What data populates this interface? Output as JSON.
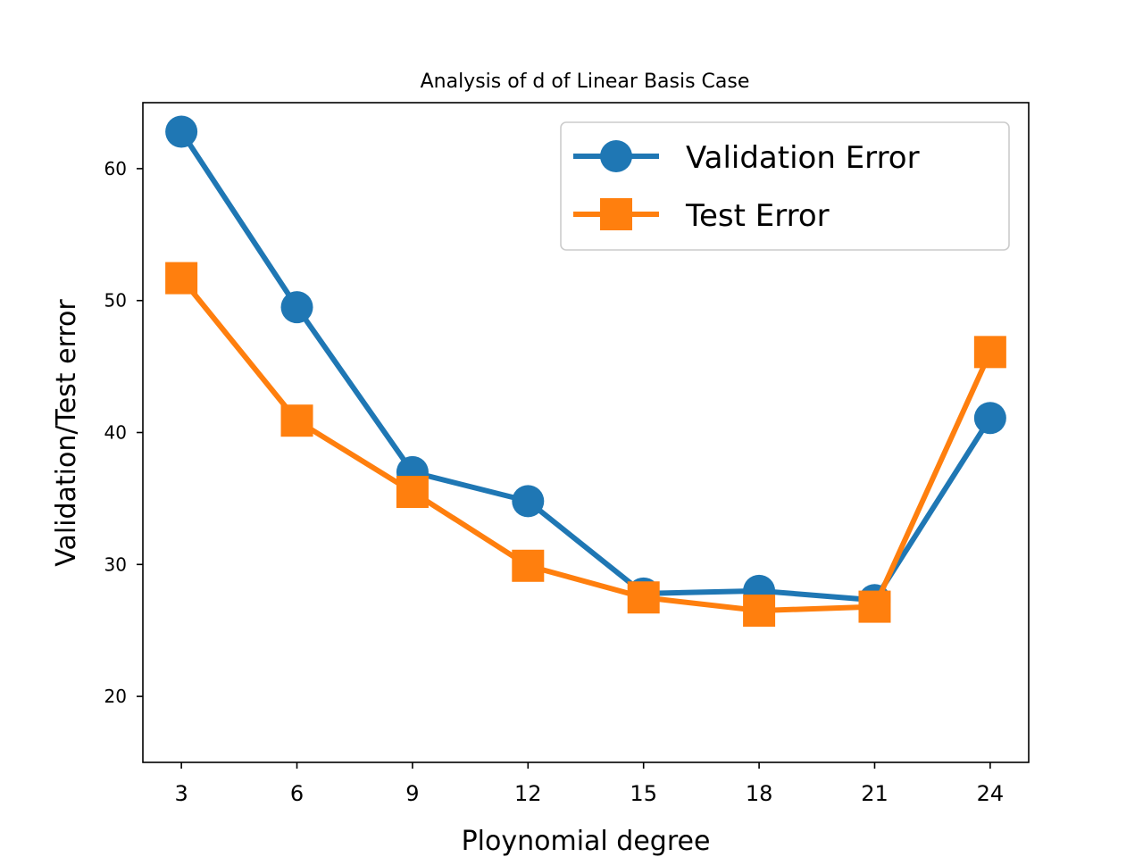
{
  "chart_data": {
    "type": "line",
    "title": "Analysis of d of Linear Basis Case",
    "xlabel": "Ploynomial degree",
    "ylabel": "Validation/Test error",
    "x": [
      3,
      6,
      9,
      12,
      15,
      18,
      21,
      24
    ],
    "xticks": [
      3,
      6,
      9,
      12,
      15,
      18,
      21,
      24
    ],
    "yticks": [
      20,
      30,
      40,
      50,
      60
    ],
    "xlim": [
      2,
      25
    ],
    "ylim": [
      15,
      65
    ],
    "grid": false,
    "legend_position": "upper-right",
    "series": [
      {
        "name": "Validation Error",
        "color": "#1f77b4",
        "marker": "circle",
        "values": [
          62.8,
          49.5,
          37.0,
          34.8,
          27.8,
          28.0,
          27.3,
          41.1
        ]
      },
      {
        "name": "Test Error",
        "color": "#ff7f0e",
        "marker": "square",
        "values": [
          51.7,
          40.9,
          35.5,
          29.9,
          27.5,
          26.5,
          26.8,
          46.1
        ]
      }
    ]
  }
}
